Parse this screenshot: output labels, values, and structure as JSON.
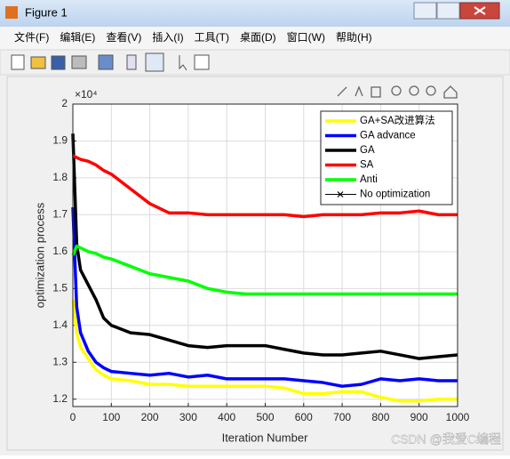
{
  "window": {
    "title": "Figure 1",
    "menu": [
      "文件(F)",
      "编辑(E)",
      "查看(V)",
      "插入(I)",
      "工具(T)",
      "桌面(D)",
      "窗口(W)",
      "帮助(H)"
    ]
  },
  "chart_data": {
    "type": "line",
    "xlabel": "Iteration Number",
    "ylabel": "optimization process",
    "y_exponent": "×10⁴",
    "x": [
      0,
      10,
      20,
      40,
      60,
      80,
      100,
      150,
      200,
      250,
      300,
      350,
      400,
      450,
      500,
      550,
      600,
      650,
      700,
      750,
      800,
      850,
      900,
      950,
      1000
    ],
    "xlim": [
      0,
      1000
    ],
    "xticks": [
      0,
      100,
      200,
      300,
      400,
      500,
      600,
      700,
      800,
      900,
      1000
    ],
    "ylim": [
      1.18,
      2
    ],
    "yticks": [
      1.2,
      1.3,
      1.4,
      1.5,
      1.6,
      1.7,
      1.8,
      1.9,
      2
    ],
    "grid": true,
    "legend": "upper right",
    "series": [
      {
        "name": "GA+SA改进算法",
        "color": "#ffff00",
        "values": [
          1.47,
          1.38,
          1.34,
          1.31,
          1.28,
          1.265,
          1.255,
          1.25,
          1.24,
          1.24,
          1.235,
          1.235,
          1.235,
          1.235,
          1.235,
          1.23,
          1.215,
          1.215,
          1.22,
          1.22,
          1.205,
          1.195,
          1.195,
          1.2,
          1.2
        ]
      },
      {
        "name": "GA advance",
        "color": "#0000ff",
        "values": [
          1.72,
          1.45,
          1.38,
          1.33,
          1.3,
          1.285,
          1.275,
          1.27,
          1.265,
          1.27,
          1.26,
          1.265,
          1.255,
          1.255,
          1.255,
          1.255,
          1.25,
          1.245,
          1.235,
          1.24,
          1.255,
          1.25,
          1.255,
          1.25,
          1.25
        ]
      },
      {
        "name": "GA",
        "color": "#000000",
        "values": [
          1.92,
          1.62,
          1.55,
          1.51,
          1.47,
          1.42,
          1.4,
          1.38,
          1.375,
          1.36,
          1.345,
          1.34,
          1.345,
          1.345,
          1.345,
          1.335,
          1.325,
          1.32,
          1.32,
          1.325,
          1.33,
          1.32,
          1.31,
          1.315,
          1.32
        ]
      },
      {
        "name": "SA",
        "color": "#ff0000",
        "values": [
          1.86,
          1.855,
          1.85,
          1.845,
          1.835,
          1.82,
          1.81,
          1.77,
          1.73,
          1.705,
          1.705,
          1.7,
          1.7,
          1.7,
          1.7,
          1.7,
          1.695,
          1.7,
          1.7,
          1.7,
          1.705,
          1.705,
          1.71,
          1.7,
          1.7
        ]
      },
      {
        "name": "Anti",
        "color": "#00ff00",
        "values": [
          1.59,
          1.615,
          1.61,
          1.6,
          1.595,
          1.585,
          1.58,
          1.56,
          1.54,
          1.53,
          1.52,
          1.5,
          1.49,
          1.485,
          1.485,
          1.485,
          1.485,
          1.485,
          1.485,
          1.485,
          1.485,
          1.485,
          1.485,
          1.485,
          1.485
        ]
      },
      {
        "name": "No optimization",
        "color": "#000000",
        "marker": "x",
        "values": [
          null,
          null,
          null,
          null,
          null,
          null,
          null,
          null,
          null,
          null,
          null,
          null,
          null,
          null,
          null,
          null,
          null,
          null,
          null,
          null,
          null,
          null,
          null,
          null,
          null
        ]
      }
    ]
  },
  "watermark": "CSDN @我爱C编程"
}
